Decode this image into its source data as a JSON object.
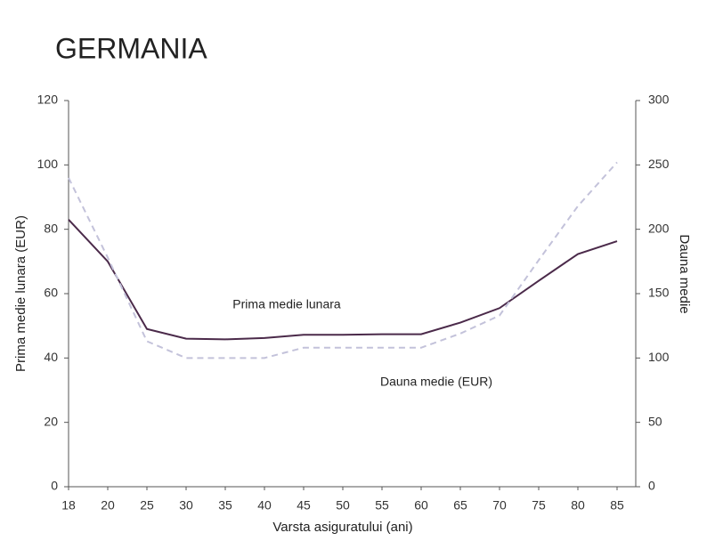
{
  "chart_data": {
    "type": "line",
    "title": "GERMANIA",
    "x_label": "Varsta asiguratului (ani)",
    "y_label": "Prima medie lunara (EUR)",
    "y2_label": "Dauna medie",
    "categories": [
      "18",
      "20",
      "25",
      "30",
      "35",
      "40",
      "45",
      "50",
      "55",
      "60",
      "65",
      "70",
      "75",
      "80",
      "85"
    ],
    "ylim": [
      0,
      120
    ],
    "yticks": [
      0,
      20,
      40,
      60,
      80,
      100,
      120
    ],
    "y2lim": [
      0,
      300
    ],
    "y2ticks": [
      0,
      50,
      100,
      150,
      200,
      250,
      300
    ],
    "grid": false,
    "series": [
      {
        "name": "Prima medie lunara",
        "color": "#4b2a4a",
        "dash": false,
        "values": [
          83,
          70,
          49,
          46,
          45.8,
          46.2,
          47.2,
          47.2,
          47.4,
          47.4,
          51,
          55.5,
          64,
          72.3,
          76.3
        ]
      },
      {
        "name": "Dauna medie (EUR)",
        "color": "#c3c2da",
        "dash": true,
        "axis": "y2",
        "values": [
          240,
          178,
          113,
          100,
          100,
          100,
          108,
          108,
          108,
          108,
          119,
          133,
          176,
          218,
          252
        ]
      }
    ]
  }
}
